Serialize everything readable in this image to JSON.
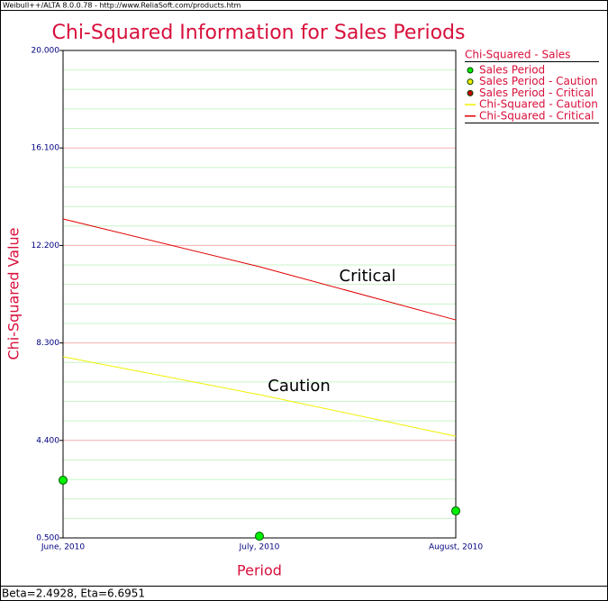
{
  "header": {
    "title": "Weibull++/ALTA 8.0.0.78 - http://www.ReliaSoft.com/products.htm"
  },
  "chart_data": {
    "type": "line",
    "title": "Chi-Squared Information for Sales Periods",
    "xlabel": "Period",
    "ylabel": "Chi-Squared Value",
    "categories": [
      "June, 2010",
      "July, 2010",
      "August, 2010"
    ],
    "ylim": [
      0.5,
      20
    ],
    "yticks": [
      {
        "value": 0.5,
        "label": "0.500"
      },
      {
        "value": 4.4,
        "label": "4.400"
      },
      {
        "value": 8.3,
        "label": "8.300"
      },
      {
        "value": 12.2,
        "label": "12.200"
      },
      {
        "value": 16.1,
        "label": "16.100"
      },
      {
        "value": 20,
        "label": "20.000"
      }
    ],
    "yminor_ticks": [
      1.28,
      2.06,
      2.84,
      3.62,
      5.18,
      5.96,
      6.74,
      7.52,
      9.08,
      9.86,
      10.64,
      11.42,
      12.98,
      13.76,
      14.54,
      15.32,
      16.88,
      17.66,
      18.44,
      19.22
    ],
    "grid": true,
    "legend_title": "Chi-Squared - Sales",
    "legend": "right",
    "series": [
      {
        "name": "Sales Period",
        "kind": "points",
        "color": "#00ee00",
        "values": [
          2.81,
          0.57,
          1.58
        ]
      },
      {
        "name": "Sales Period - Caution",
        "kind": "points",
        "color": "#eeee00",
        "values": [
          null,
          null,
          null
        ]
      },
      {
        "name": "Sales Period - Critical",
        "kind": "points",
        "color": "#cc0000",
        "values": [
          null,
          null,
          null
        ]
      },
      {
        "name": "Chi-Squared - Caution",
        "kind": "line",
        "color": "#f0f000",
        "values": [
          7.75,
          6.23,
          4.57
        ]
      },
      {
        "name": "Chi-Squared - Critical",
        "kind": "line",
        "color": "#e00000",
        "values": [
          13.26,
          11.35,
          9.22
        ]
      }
    ],
    "annotations": [
      {
        "text": "Critical"
      },
      {
        "text": "Caution"
      }
    ]
  },
  "status": {
    "text": "Beta=2.4928, Eta=6.6951"
  }
}
